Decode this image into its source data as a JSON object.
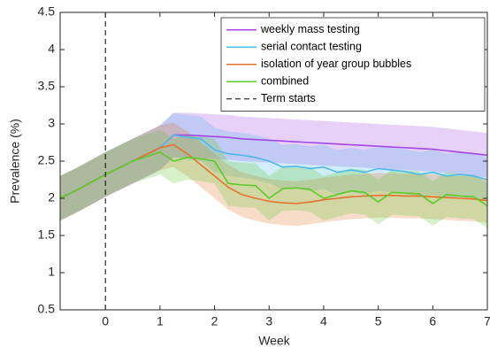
{
  "chart_data": {
    "type": "line",
    "x_label": "Week",
    "y_label": "Prevalence (%)",
    "x": [
      -0.83,
      -0.5,
      0,
      0.5,
      1,
      1.25,
      1.5,
      1.75,
      2,
      2.25,
      2.5,
      2.75,
      3,
      3.25,
      3.5,
      3.75,
      4,
      4.25,
      4.5,
      4.75,
      5,
      5.25,
      5.5,
      5.75,
      6,
      6.25,
      6.5,
      6.75,
      7
    ],
    "xlim": [
      -0.83,
      7
    ],
    "xticks": [
      0,
      1,
      2,
      3,
      4,
      5,
      6,
      7
    ],
    "ylim": [
      0.5,
      4.5
    ],
    "yticks": [
      0.5,
      1,
      1.5,
      2,
      2.5,
      3,
      3.5,
      4,
      4.5
    ],
    "grid": false,
    "legend": "top-right",
    "series": [
      {
        "name": "weekly mass testing",
        "color": "#a347e6",
        "values": [
          2.0,
          2.12,
          2.32,
          2.5,
          2.68,
          2.85,
          2.85,
          2.84,
          2.83,
          2.82,
          2.8,
          2.79,
          2.78,
          2.77,
          2.76,
          2.75,
          2.74,
          2.73,
          2.72,
          2.71,
          2.7,
          2.69,
          2.68,
          2.67,
          2.66,
          2.64,
          2.62,
          2.6,
          2.58
        ],
        "lower": [
          1.7,
          1.82,
          2.02,
          2.2,
          2.38,
          2.55,
          2.55,
          2.54,
          2.53,
          2.52,
          2.5,
          2.49,
          2.48,
          2.47,
          2.46,
          2.45,
          2.44,
          2.43,
          2.42,
          2.41,
          2.4,
          2.39,
          2.38,
          2.37,
          2.36,
          2.34,
          2.32,
          2.3,
          2.28
        ],
        "upper": [
          2.3,
          2.42,
          2.62,
          2.8,
          2.98,
          3.15,
          3.15,
          3.14,
          3.13,
          3.12,
          3.1,
          3.09,
          3.08,
          3.07,
          3.06,
          3.05,
          3.04,
          3.03,
          3.02,
          3.01,
          3.0,
          2.99,
          2.98,
          2.97,
          2.96,
          2.94,
          2.92,
          2.9,
          2.88
        ]
      },
      {
        "name": "serial contact testing",
        "color": "#4db9ea",
        "values": [
          2.0,
          2.12,
          2.32,
          2.5,
          2.68,
          2.85,
          2.82,
          2.8,
          2.65,
          2.6,
          2.58,
          2.55,
          2.5,
          2.42,
          2.43,
          2.4,
          2.42,
          2.35,
          2.38,
          2.35,
          2.4,
          2.38,
          2.36,
          2.32,
          2.35,
          2.3,
          2.32,
          2.3,
          2.25
        ],
        "lower": [
          1.7,
          1.82,
          2.02,
          2.2,
          2.38,
          2.55,
          2.52,
          2.5,
          2.35,
          2.3,
          2.28,
          2.25,
          2.2,
          2.12,
          2.13,
          2.1,
          2.12,
          2.05,
          2.08,
          2.05,
          2.1,
          2.08,
          2.06,
          2.02,
          2.05,
          2.0,
          2.02,
          2.0,
          1.95
        ],
        "upper": [
          2.3,
          2.42,
          2.62,
          2.8,
          2.98,
          3.15,
          3.12,
          3.1,
          2.95,
          2.9,
          2.88,
          2.85,
          2.8,
          2.72,
          2.73,
          2.7,
          2.72,
          2.65,
          2.68,
          2.65,
          2.7,
          2.68,
          2.66,
          2.62,
          2.65,
          2.6,
          2.62,
          2.6,
          2.55
        ]
      },
      {
        "name": "isolation of year group bubbles",
        "color": "#e5722c",
        "values": [
          2.0,
          2.12,
          2.32,
          2.5,
          2.68,
          2.72,
          2.6,
          2.45,
          2.3,
          2.15,
          2.05,
          2.0,
          1.96,
          1.94,
          1.93,
          1.95,
          1.98,
          2.0,
          2.02,
          2.03,
          2.04,
          2.04,
          2.03,
          2.03,
          2.02,
          2.01,
          2.0,
          1.99,
          1.97
        ],
        "lower": [
          1.7,
          1.82,
          2.02,
          2.2,
          2.38,
          2.42,
          2.3,
          2.15,
          2.0,
          1.85,
          1.75,
          1.7,
          1.66,
          1.64,
          1.63,
          1.65,
          1.68,
          1.7,
          1.72,
          1.73,
          1.74,
          1.74,
          1.73,
          1.73,
          1.72,
          1.71,
          1.7,
          1.69,
          1.67
        ],
        "upper": [
          2.3,
          2.42,
          2.62,
          2.8,
          2.98,
          3.02,
          2.9,
          2.75,
          2.6,
          2.45,
          2.35,
          2.3,
          2.26,
          2.24,
          2.23,
          2.25,
          2.28,
          2.3,
          2.32,
          2.33,
          2.34,
          2.34,
          2.33,
          2.33,
          2.32,
          2.31,
          2.3,
          2.29,
          2.27
        ]
      },
      {
        "name": "combined",
        "color": "#5dc92b",
        "values": [
          2.0,
          2.12,
          2.32,
          2.5,
          2.62,
          2.5,
          2.55,
          2.53,
          2.5,
          2.2,
          2.18,
          2.17,
          2.0,
          2.13,
          2.14,
          2.12,
          2.0,
          2.05,
          2.1,
          2.08,
          1.95,
          2.08,
          2.07,
          2.06,
          1.93,
          2.05,
          2.03,
          2.02,
          1.9
        ],
        "lower": [
          1.7,
          1.82,
          2.02,
          2.2,
          2.32,
          2.2,
          2.25,
          2.23,
          2.2,
          1.9,
          1.88,
          1.87,
          1.7,
          1.83,
          1.84,
          1.82,
          1.7,
          1.75,
          1.8,
          1.78,
          1.65,
          1.78,
          1.77,
          1.76,
          1.63,
          1.75,
          1.73,
          1.72,
          1.6
        ],
        "upper": [
          2.3,
          2.42,
          2.62,
          2.8,
          2.92,
          2.8,
          2.85,
          2.83,
          2.8,
          2.5,
          2.48,
          2.47,
          2.3,
          2.43,
          2.44,
          2.42,
          2.3,
          2.35,
          2.4,
          2.38,
          2.25,
          2.38,
          2.37,
          2.36,
          2.23,
          2.35,
          2.33,
          2.32,
          2.2
        ]
      }
    ],
    "vlines": [
      {
        "name": "Term starts",
        "x": 0,
        "color": "#000000"
      }
    ]
  }
}
